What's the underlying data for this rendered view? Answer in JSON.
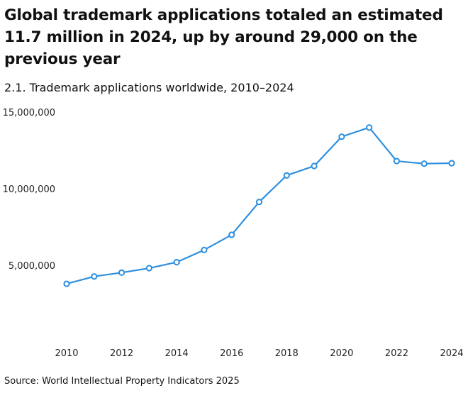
{
  "title": "Global trademark applications totaled an estimated 11.7 million in 2024, up by around 29,000 on the previous year",
  "subtitle": "2.1. Trademark applications worldwide, 2010–2024",
  "source": "Source: World Intellectual Property Indicators 2025",
  "chart_data": {
    "type": "line",
    "title": "2.1. Trademark applications worldwide, 2010–2024",
    "xlabel": "",
    "ylabel": "",
    "x": [
      2010,
      2011,
      2012,
      2013,
      2014,
      2015,
      2016,
      2017,
      2018,
      2019,
      2020,
      2021,
      2022,
      2023,
      2024
    ],
    "values": [
      3840000,
      4320000,
      4570000,
      4860000,
      5250000,
      6050000,
      7040000,
      9180000,
      10910000,
      11530000,
      13440000,
      14040000,
      11850000,
      11680000,
      11710000
    ],
    "ylim": [
      0,
      15000000
    ],
    "yticks": [
      5000000,
      10000000,
      15000000
    ],
    "ytick_labels": [
      "5,000,000",
      "10,000,000",
      "15,000,000"
    ],
    "xticks": [
      2010,
      2012,
      2014,
      2016,
      2018,
      2020,
      2022,
      2024
    ],
    "xtick_labels": [
      "2010",
      "2012",
      "2014",
      "2016",
      "2018",
      "2020",
      "2022",
      "2024"
    ],
    "grid": false,
    "color": "#2e8fe0",
    "markers": "hollow-circle"
  }
}
